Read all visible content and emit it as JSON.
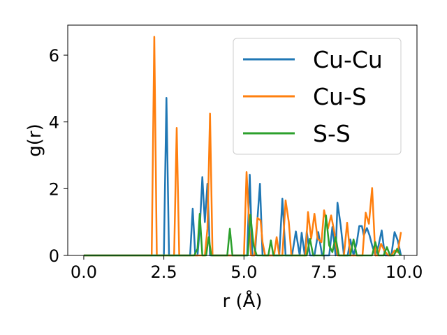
{
  "chart_data": {
    "type": "line",
    "xlabel": "r (Å)",
    "ylabel": "g(r)",
    "xlim": [
      -0.5,
      10.4
    ],
    "ylim": [
      0,
      6.9
    ],
    "xticks": [
      0.0,
      2.5,
      5.0,
      7.5,
      10.0
    ],
    "xtick_labels": [
      "0.0",
      "2.5",
      "5.0",
      "7.5",
      "10.0"
    ],
    "yticks": [
      0,
      2,
      4,
      6
    ],
    "ytick_labels": [
      "0",
      "2",
      "4",
      "6"
    ],
    "grid": false,
    "legend": "top-right",
    "series": [
      {
        "name": "Cu-Cu",
        "color": "#1f77b4",
        "points": [
          [
            0,
            0
          ],
          [
            2.5,
            0
          ],
          [
            2.58,
            4.72
          ],
          [
            2.66,
            0
          ],
          [
            3.32,
            0
          ],
          [
            3.4,
            1.4
          ],
          [
            3.48,
            0
          ],
          [
            3.55,
            0
          ],
          [
            3.62,
            0.8
          ],
          [
            3.7,
            2.35
          ],
          [
            3.78,
            1.0
          ],
          [
            3.86,
            2.15
          ],
          [
            3.94,
            0
          ],
          [
            5.1,
            0
          ],
          [
            5.18,
            2.42
          ],
          [
            5.26,
            0
          ],
          [
            5.34,
            0
          ],
          [
            5.5,
            2.15
          ],
          [
            5.58,
            0
          ],
          [
            6.1,
            0
          ],
          [
            6.2,
            1.7
          ],
          [
            6.3,
            0
          ],
          [
            6.5,
            0
          ],
          [
            6.62,
            0.72
          ],
          [
            6.74,
            0
          ],
          [
            6.8,
            0.68
          ],
          [
            6.9,
            0
          ],
          [
            6.96,
            0.72
          ],
          [
            7.06,
            0
          ],
          [
            7.2,
            0
          ],
          [
            7.32,
            0.7
          ],
          [
            7.44,
            0
          ],
          [
            7.66,
            0
          ],
          [
            7.76,
            0.85
          ],
          [
            7.86,
            0
          ],
          [
            7.92,
            1.58
          ],
          [
            8.02,
            0.9
          ],
          [
            8.12,
            0
          ],
          [
            8.24,
            0
          ],
          [
            8.32,
            0.48
          ],
          [
            8.42,
            0
          ],
          [
            8.52,
            0.38
          ],
          [
            8.6,
            0.88
          ],
          [
            8.68,
            0.88
          ],
          [
            8.74,
            0.6
          ],
          [
            8.84,
            0.82
          ],
          [
            8.92,
            0.6
          ],
          [
            9.0,
            0.3
          ],
          [
            9.1,
            0
          ],
          [
            9.2,
            0.3
          ],
          [
            9.3,
            0.75
          ],
          [
            9.4,
            0
          ],
          [
            9.6,
            0
          ],
          [
            9.7,
            0.7
          ],
          [
            9.8,
            0.45
          ],
          [
            9.9,
            0
          ]
        ]
      },
      {
        "name": "Cu-S",
        "color": "#ff7f0e",
        "points": [
          [
            0,
            0
          ],
          [
            2.12,
            0
          ],
          [
            2.2,
            6.55
          ],
          [
            2.28,
            0
          ],
          [
            2.82,
            0
          ],
          [
            2.9,
            3.82
          ],
          [
            2.98,
            0
          ],
          [
            3.78,
            0
          ],
          [
            3.86,
            0.8
          ],
          [
            3.94,
            4.25
          ],
          [
            4.02,
            0
          ],
          [
            5.0,
            0
          ],
          [
            5.08,
            2.5
          ],
          [
            5.16,
            1.05
          ],
          [
            5.22,
            0
          ],
          [
            5.32,
            0
          ],
          [
            5.42,
            1.12
          ],
          [
            5.52,
            1.05
          ],
          [
            5.58,
            0.4
          ],
          [
            5.66,
            0
          ],
          [
            5.94,
            0
          ],
          [
            6.02,
            0.55
          ],
          [
            6.1,
            0
          ],
          [
            6.2,
            0
          ],
          [
            6.3,
            1.65
          ],
          [
            6.4,
            1.0
          ],
          [
            6.48,
            0
          ],
          [
            6.92,
            0
          ],
          [
            7.0,
            1.3
          ],
          [
            7.1,
            0.5
          ],
          [
            7.2,
            1.25
          ],
          [
            7.3,
            0.5
          ],
          [
            7.42,
            0.4
          ],
          [
            7.5,
            1.35
          ],
          [
            7.62,
            0.8
          ],
          [
            7.72,
            1.2
          ],
          [
            7.82,
            0.7
          ],
          [
            7.92,
            0
          ],
          [
            8.12,
            0
          ],
          [
            8.22,
            0.98
          ],
          [
            8.32,
            0
          ],
          [
            8.7,
            0
          ],
          [
            8.8,
            1.28
          ],
          [
            8.9,
            0.95
          ],
          [
            9.0,
            2.02
          ],
          [
            9.1,
            0
          ],
          [
            9.18,
            0
          ],
          [
            9.28,
            0.35
          ],
          [
            9.38,
            0.15
          ],
          [
            9.5,
            0
          ],
          [
            9.6,
            0
          ],
          [
            9.7,
            0.15
          ],
          [
            9.8,
            0.1
          ],
          [
            9.9,
            0.7
          ]
        ]
      },
      {
        "name": "S-S",
        "color": "#2ca02c",
        "points": [
          [
            0,
            0
          ],
          [
            3.45,
            0
          ],
          [
            3.55,
            0.2
          ],
          [
            3.62,
            1.25
          ],
          [
            3.7,
            0
          ],
          [
            3.82,
            0
          ],
          [
            3.9,
            0.55
          ],
          [
            3.98,
            0
          ],
          [
            4.48,
            0
          ],
          [
            4.56,
            0.8
          ],
          [
            4.64,
            0
          ],
          [
            5.12,
            0
          ],
          [
            5.2,
            1.22
          ],
          [
            5.3,
            0.3
          ],
          [
            5.4,
            0
          ],
          [
            5.76,
            0
          ],
          [
            5.84,
            0.45
          ],
          [
            5.92,
            0
          ],
          [
            6.96,
            0
          ],
          [
            7.06,
            0.5
          ],
          [
            7.16,
            0
          ],
          [
            7.48,
            0
          ],
          [
            7.56,
            1.2
          ],
          [
            7.66,
            0.3
          ],
          [
            7.76,
            0.1
          ],
          [
            7.86,
            0.55
          ],
          [
            7.96,
            0
          ],
          [
            8.32,
            0
          ],
          [
            8.42,
            0.48
          ],
          [
            8.52,
            0
          ],
          [
            9.0,
            0
          ],
          [
            9.1,
            0.4
          ],
          [
            9.2,
            0
          ],
          [
            9.36,
            0
          ],
          [
            9.46,
            0.25
          ],
          [
            9.56,
            0
          ],
          [
            9.68,
            0
          ],
          [
            9.78,
            0.2
          ],
          [
            9.88,
            0
          ]
        ]
      }
    ]
  }
}
